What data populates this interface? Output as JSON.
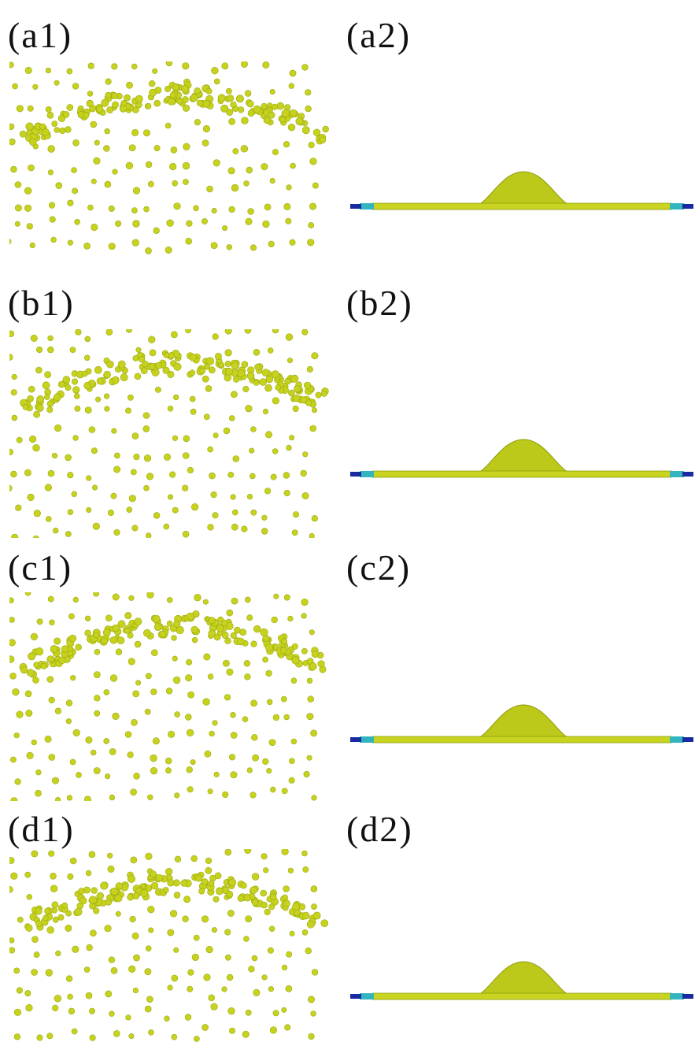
{
  "panels": [
    {
      "left_label": "(a1)",
      "right_label": "(a2)"
    },
    {
      "left_label": "(b1)",
      "right_label": "(b2)"
    },
    {
      "left_label": "(c1)",
      "right_label": "(c2)"
    },
    {
      "left_label": "(d1)",
      "right_label": "(d2)"
    }
  ],
  "colors": {
    "particle": "#c6d21e",
    "particle_stroke": "#9aa80e",
    "band": "#bcc91a",
    "bar": "#c8d420",
    "bar_end_teal": "#33b5c0",
    "bar_end_blue": "#1a2aa0"
  }
}
